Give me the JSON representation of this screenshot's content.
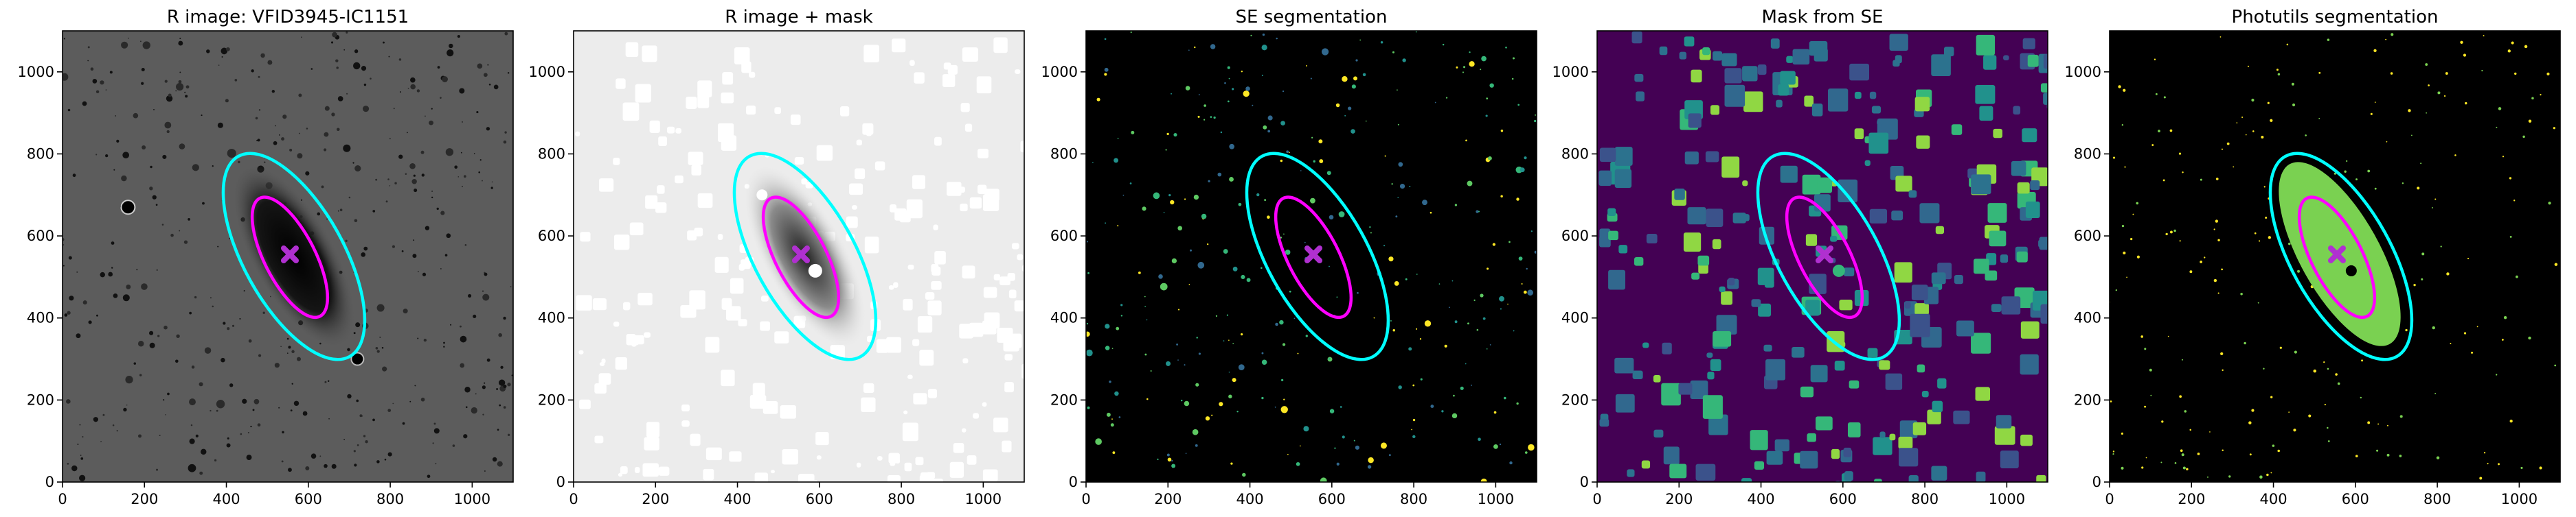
{
  "chart_data": [
    {
      "type": "image",
      "title": "R image: VFID3945-IC1151",
      "background": "#5c5c5c",
      "xlim": [
        0,
        1100
      ],
      "ylim": [
        0,
        1100
      ],
      "xticks": [
        0,
        200,
        400,
        600,
        800,
        1000
      ],
      "yticks": [
        0,
        200,
        400,
        600,
        800,
        1000
      ],
      "ellipses": [
        {
          "cx": 565,
          "cy": 550,
          "a": 280,
          "b": 122,
          "angle": -61,
          "color": "#00ffff"
        },
        {
          "cx": 555,
          "cy": 548,
          "a": 162,
          "b": 62,
          "angle": -63,
          "color": "#ff00ff"
        }
      ],
      "marker": {
        "x": 555,
        "y": 555,
        "color": "#b030d0"
      }
    },
    {
      "type": "image",
      "title": "R image + mask",
      "background": "#ececec",
      "xlim": [
        0,
        1100
      ],
      "ylim": [
        0,
        1100
      ],
      "xticks": [
        0,
        200,
        400,
        600,
        800,
        1000
      ],
      "yticks": [
        0,
        200,
        400,
        600,
        800,
        1000
      ],
      "ellipses": [
        {
          "cx": 565,
          "cy": 550,
          "a": 280,
          "b": 122,
          "angle": -61,
          "color": "#00ffff"
        },
        {
          "cx": 555,
          "cy": 548,
          "a": 162,
          "b": 62,
          "angle": -63,
          "color": "#ff00ff"
        }
      ],
      "marker": {
        "x": 555,
        "y": 555,
        "color": "#b030d0"
      }
    },
    {
      "type": "image",
      "title": "SE segmentation",
      "background": "#000000",
      "xlim": [
        0,
        1100
      ],
      "ylim": [
        0,
        1100
      ],
      "xticks": [
        0,
        200,
        400,
        600,
        800,
        1000
      ],
      "yticks": [
        0,
        200,
        400,
        600,
        800,
        1000
      ],
      "ellipses": [
        {
          "cx": 565,
          "cy": 550,
          "a": 280,
          "b": 122,
          "angle": -61,
          "color": "#00ffff"
        },
        {
          "cx": 555,
          "cy": 548,
          "a": 162,
          "b": 62,
          "angle": -63,
          "color": "#ff00ff"
        }
      ],
      "marker": {
        "x": 555,
        "y": 555,
        "color": "#b030d0"
      }
    },
    {
      "type": "image",
      "title": "Mask from SE",
      "background": "#440154",
      "xlim": [
        0,
        1100
      ],
      "ylim": [
        0,
        1100
      ],
      "xticks": [
        0,
        200,
        400,
        600,
        800,
        1000
      ],
      "yticks": [
        0,
        200,
        400,
        600,
        800,
        1000
      ],
      "ellipses": [
        {
          "cx": 565,
          "cy": 550,
          "a": 280,
          "b": 122,
          "angle": -61,
          "color": "#00ffff"
        },
        {
          "cx": 555,
          "cy": 548,
          "a": 162,
          "b": 62,
          "angle": -63,
          "color": "#ff00ff"
        }
      ],
      "marker": {
        "x": 555,
        "y": 555,
        "color": "#b030d0"
      }
    },
    {
      "type": "image",
      "title": "Photutils segmentation",
      "background": "#000000",
      "xlim": [
        0,
        1100
      ],
      "ylim": [
        0,
        1100
      ],
      "xticks": [
        0,
        200,
        400,
        600,
        800,
        1000
      ],
      "yticks": [
        0,
        200,
        400,
        600,
        800,
        1000
      ],
      "ellipses": [
        {
          "cx": 565,
          "cy": 550,
          "a": 280,
          "b": 122,
          "angle": -61,
          "color": "#00ffff"
        },
        {
          "cx": 555,
          "cy": 548,
          "a": 162,
          "b": 62,
          "angle": -63,
          "color": "#ff00ff"
        }
      ],
      "marker": {
        "x": 555,
        "y": 555,
        "color": "#b030d0"
      }
    }
  ]
}
